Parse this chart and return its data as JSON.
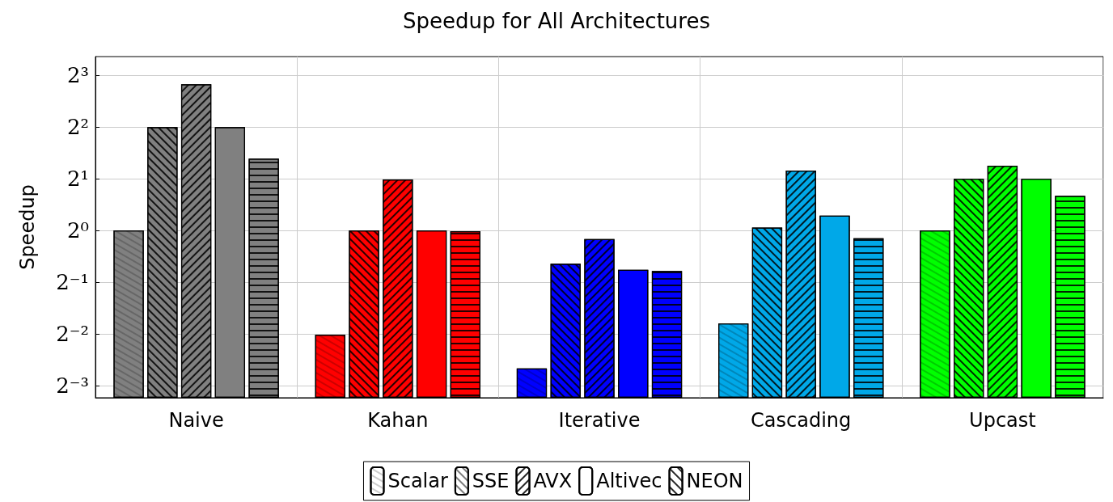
{
  "chart_data": {
    "type": "bar",
    "title": "Speedup for All Architectures",
    "ylabel": "Speedup",
    "categories": [
      "Naive",
      "Kahan",
      "Iterative",
      "Cascading",
      "Upcast"
    ],
    "series": [
      {
        "name": "Scalar",
        "colors": [
          "#808080",
          "#ff0000",
          "#0000ff",
          "#00a8e8",
          "#00ff00"
        ],
        "values": [
          1,
          0.247,
          0.157,
          0.287,
          1
        ]
      },
      {
        "name": "SSE",
        "colors": [
          "#808080",
          "#ff0000",
          "#0000ff",
          "#00a8e8",
          "#00ff00"
        ],
        "values": [
          4,
          1,
          0.64,
          1.04,
          2
        ]
      },
      {
        "name": "AVX",
        "colors": [
          "#808080",
          "#ff0000",
          "#0000ff",
          "#00a8e8",
          "#00ff00"
        ],
        "values": [
          7.1,
          1.98,
          0.89,
          2.23,
          2.38
        ]
      },
      {
        "name": "Altivec",
        "colors": [
          "#808080",
          "#ff0000",
          "#0000ff",
          "#00a8e8",
          "#00ff00"
        ],
        "values": [
          4,
          1,
          0.59,
          1.22,
          2
        ]
      },
      {
        "name": "NEON",
        "colors": [
          "#808080",
          "#ff0000",
          "#0000ff",
          "#00a8e8",
          "#00ff00"
        ],
        "values": [
          2.62,
          0.99,
          0.58,
          0.9,
          1.59
        ]
      }
    ],
    "log": true,
    "ylim": [
      0.106,
      10.3
    ],
    "yticks": [
      {
        "value": 0.125,
        "label": "2⁻³"
      },
      {
        "value": 0.25,
        "label": "2⁻²"
      },
      {
        "value": 0.5,
        "label": "2⁻¹"
      },
      {
        "value": 1,
        "label": "2⁰"
      },
      {
        "value": 2,
        "label": "2¹"
      },
      {
        "value": 4,
        "label": "2²"
      },
      {
        "value": 8,
        "label": "2³"
      }
    ],
    "grid": true,
    "legend": "bottom"
  }
}
